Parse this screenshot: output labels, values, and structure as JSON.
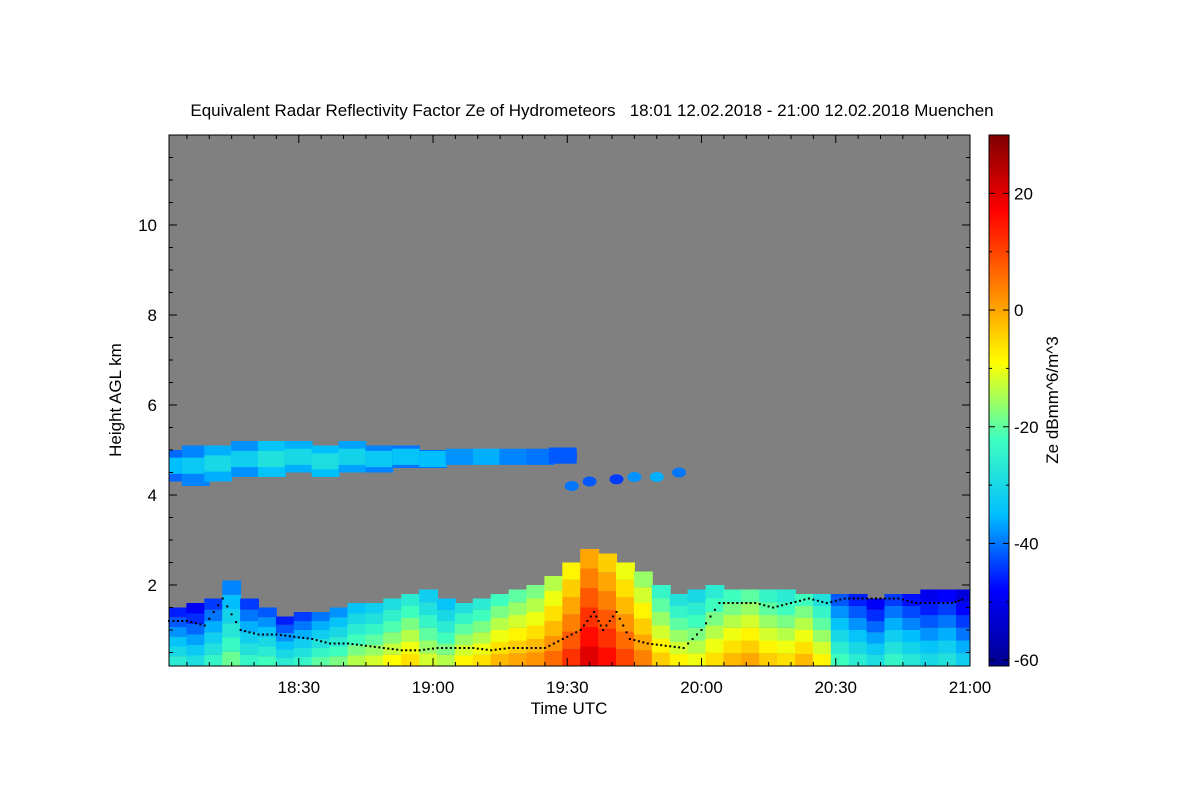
{
  "chart_data": {
    "type": "heatmap",
    "title": "Equivalent Radar Reflectivity Factor Ze of Hydrometeors   18:01 12.02.2018 - 21:00 12.02.2018 Muenchen",
    "xlabel": "Time UTC",
    "ylabel": "Height AGL km",
    "colorbar_label": "Ze dBmm^6/m^3",
    "x_range_minutes": [
      1081,
      1260
    ],
    "y_range_km": [
      0.2,
      12.0
    ],
    "x_ticks": [
      {
        "minute": 1110,
        "label": "18:30"
      },
      {
        "minute": 1140,
        "label": "19:00"
      },
      {
        "minute": 1170,
        "label": "19:30"
      },
      {
        "minute": 1200,
        "label": "20:00"
      },
      {
        "minute": 1230,
        "label": "20:30"
      },
      {
        "minute": 1260,
        "label": "21:00"
      }
    ],
    "y_ticks": [
      {
        "value": 2,
        "label": "2"
      },
      {
        "value": 4,
        "label": "4"
      },
      {
        "value": 6,
        "label": "6"
      },
      {
        "value": 8,
        "label": "8"
      },
      {
        "value": 10,
        "label": "10"
      }
    ],
    "colorbar_range": [
      -61,
      30
    ],
    "colorbar_ticks": [
      {
        "value": 20,
        "label": "20"
      },
      {
        "value": 0,
        "label": "0"
      },
      {
        "value": -20,
        "label": "-20"
      },
      {
        "value": -40,
        "label": "-40"
      },
      {
        "value": -60,
        "label": "-60"
      }
    ],
    "no_data_color": "#808080",
    "colormap": [
      "#00008f",
      "#0000ff",
      "#00bfff",
      "#3fffbf",
      "#ffff00",
      "#ff7f00",
      "#ff0000",
      "#7f0000"
    ],
    "upper_layer_cells": [
      {
        "t": 1083,
        "bottom": 4.3,
        "top": 5.0,
        "ze": -35
      },
      {
        "t": 1087,
        "bottom": 4.2,
        "top": 5.1,
        "ze": -33
      },
      {
        "t": 1092,
        "bottom": 4.3,
        "top": 5.1,
        "ze": -30
      },
      {
        "t": 1098,
        "bottom": 4.4,
        "top": 5.2,
        "ze": -32
      },
      {
        "t": 1104,
        "bottom": 4.4,
        "top": 5.2,
        "ze": -28
      },
      {
        "t": 1110,
        "bottom": 4.5,
        "top": 5.2,
        "ze": -30
      },
      {
        "t": 1116,
        "bottom": 4.4,
        "top": 5.1,
        "ze": -29
      },
      {
        "t": 1122,
        "bottom": 4.5,
        "top": 5.2,
        "ze": -31
      },
      {
        "t": 1128,
        "bottom": 4.5,
        "top": 5.1,
        "ze": -33
      },
      {
        "t": 1134,
        "bottom": 4.6,
        "top": 5.1,
        "ze": -34
      },
      {
        "t": 1140,
        "bottom": 4.6,
        "top": 5.0,
        "ze": -35
      },
      {
        "t": 1146,
        "bottom": 4.7,
        "top": 5.0,
        "ze": -38
      },
      {
        "t": 1152,
        "bottom": 4.7,
        "top": 5.0,
        "ze": -36
      },
      {
        "t": 1158,
        "bottom": 4.7,
        "top": 5.0,
        "ze": -39
      },
      {
        "t": 1164,
        "bottom": 4.75,
        "top": 4.95,
        "ze": -40
      },
      {
        "t": 1169,
        "bottom": 4.8,
        "top": 4.95,
        "ze": -42
      }
    ],
    "lower_layer_cells": [
      {
        "t": 1083,
        "top": 1.5,
        "ze": -32
      },
      {
        "t": 1087,
        "top": 1.6,
        "ze": -35
      },
      {
        "t": 1091,
        "top": 1.7,
        "ze": -30
      },
      {
        "t": 1095,
        "top": 2.1,
        "ze": -25
      },
      {
        "t": 1099,
        "top": 1.7,
        "ze": -30
      },
      {
        "t": 1103,
        "top": 1.5,
        "ze": -28
      },
      {
        "t": 1107,
        "top": 1.3,
        "ze": -32
      },
      {
        "t": 1111,
        "top": 1.4,
        "ze": -30
      },
      {
        "t": 1115,
        "top": 1.4,
        "ze": -26
      },
      {
        "t": 1119,
        "top": 1.5,
        "ze": -24
      },
      {
        "t": 1123,
        "top": 1.6,
        "ze": -20
      },
      {
        "t": 1127,
        "top": 1.6,
        "ze": -18
      },
      {
        "t": 1131,
        "top": 1.7,
        "ze": -15
      },
      {
        "t": 1135,
        "top": 1.8,
        "ze": -12
      },
      {
        "t": 1139,
        "top": 1.9,
        "ze": -18
      },
      {
        "t": 1143,
        "top": 1.7,
        "ze": -20
      },
      {
        "t": 1147,
        "top": 1.6,
        "ze": -14
      },
      {
        "t": 1151,
        "top": 1.7,
        "ze": -12
      },
      {
        "t": 1155,
        "top": 1.8,
        "ze": -8
      },
      {
        "t": 1159,
        "top": 1.9,
        "ze": -6
      },
      {
        "t": 1163,
        "top": 2.0,
        "ze": -4
      },
      {
        "t": 1167,
        "top": 2.2,
        "ze": 0
      },
      {
        "t": 1171,
        "top": 2.5,
        "ze": 6
      },
      {
        "t": 1175,
        "top": 2.8,
        "ze": 14
      },
      {
        "t": 1179,
        "top": 2.7,
        "ze": 10
      },
      {
        "t": 1183,
        "top": 2.5,
        "ze": 4
      },
      {
        "t": 1187,
        "top": 2.3,
        "ze": -2
      },
      {
        "t": 1191,
        "top": 2.0,
        "ze": -10
      },
      {
        "t": 1195,
        "top": 1.8,
        "ze": -14
      },
      {
        "t": 1199,
        "top": 1.9,
        "ze": -16
      },
      {
        "t": 1203,
        "top": 2.0,
        "ze": -12
      },
      {
        "t": 1207,
        "top": 1.9,
        "ze": -8
      },
      {
        "t": 1211,
        "top": 1.9,
        "ze": -6
      },
      {
        "t": 1215,
        "top": 1.9,
        "ze": -10
      },
      {
        "t": 1219,
        "top": 1.9,
        "ze": -12
      },
      {
        "t": 1223,
        "top": 1.8,
        "ze": -8
      },
      {
        "t": 1227,
        "top": 1.8,
        "ze": -14
      },
      {
        "t": 1231,
        "top": 1.8,
        "ze": -28
      },
      {
        "t": 1235,
        "top": 1.8,
        "ze": -32
      },
      {
        "t": 1239,
        "top": 1.7,
        "ze": -35
      },
      {
        "t": 1243,
        "top": 1.8,
        "ze": -30
      },
      {
        "t": 1247,
        "top": 1.8,
        "ze": -33
      },
      {
        "t": 1251,
        "top": 1.9,
        "ze": -36
      },
      {
        "t": 1255,
        "top": 1.9,
        "ze": -34
      },
      {
        "t": 1259,
        "top": 1.9,
        "ze": -38
      }
    ],
    "scattered_echoes": [
      {
        "t": 1171,
        "h": 4.2,
        "ze": -40
      },
      {
        "t": 1175,
        "h": 4.3,
        "ze": -42
      },
      {
        "t": 1185,
        "h": 4.4,
        "ze": -38
      },
      {
        "t": 1190,
        "h": 4.4,
        "ze": -36
      },
      {
        "t": 1195,
        "h": 4.5,
        "ze": -40
      },
      {
        "t": 1181,
        "h": 4.35,
        "ze": -44
      }
    ],
    "cloud_base_points": [
      {
        "t": 1081,
        "h": 1.2
      },
      {
        "t": 1085,
        "h": 1.2
      },
      {
        "t": 1089,
        "h": 1.1
      },
      {
        "t": 1093,
        "h": 1.7
      },
      {
        "t": 1097,
        "h": 1.0
      },
      {
        "t": 1101,
        "h": 0.9
      },
      {
        "t": 1105,
        "h": 0.9
      },
      {
        "t": 1109,
        "h": 0.85
      },
      {
        "t": 1113,
        "h": 0.8
      },
      {
        "t": 1117,
        "h": 0.7
      },
      {
        "t": 1121,
        "h": 0.7
      },
      {
        "t": 1125,
        "h": 0.65
      },
      {
        "t": 1129,
        "h": 0.6
      },
      {
        "t": 1133,
        "h": 0.55
      },
      {
        "t": 1137,
        "h": 0.55
      },
      {
        "t": 1141,
        "h": 0.6
      },
      {
        "t": 1145,
        "h": 0.6
      },
      {
        "t": 1149,
        "h": 0.6
      },
      {
        "t": 1153,
        "h": 0.55
      },
      {
        "t": 1157,
        "h": 0.6
      },
      {
        "t": 1161,
        "h": 0.6
      },
      {
        "t": 1165,
        "h": 0.6
      },
      {
        "t": 1169,
        "h": 0.8
      },
      {
        "t": 1173,
        "h": 1.0
      },
      {
        "t": 1176,
        "h": 1.4
      },
      {
        "t": 1178,
        "h": 1.0
      },
      {
        "t": 1181,
        "h": 1.4
      },
      {
        "t": 1184,
        "h": 0.8
      },
      {
        "t": 1188,
        "h": 0.7
      },
      {
        "t": 1192,
        "h": 0.65
      },
      {
        "t": 1196,
        "h": 0.6
      },
      {
        "t": 1200,
        "h": 1.0
      },
      {
        "t": 1204,
        "h": 1.6
      },
      {
        "t": 1208,
        "h": 1.6
      },
      {
        "t": 1212,
        "h": 1.6
      },
      {
        "t": 1216,
        "h": 1.5
      },
      {
        "t": 1220,
        "h": 1.6
      },
      {
        "t": 1224,
        "h": 1.7
      },
      {
        "t": 1228,
        "h": 1.6
      },
      {
        "t": 1232,
        "h": 1.7
      },
      {
        "t": 1236,
        "h": 1.7
      },
      {
        "t": 1240,
        "h": 1.7
      },
      {
        "t": 1244,
        "h": 1.7
      },
      {
        "t": 1248,
        "h": 1.6
      },
      {
        "t": 1252,
        "h": 1.6
      },
      {
        "t": 1256,
        "h": 1.6
      },
      {
        "t": 1259,
        "h": 1.7
      }
    ]
  }
}
